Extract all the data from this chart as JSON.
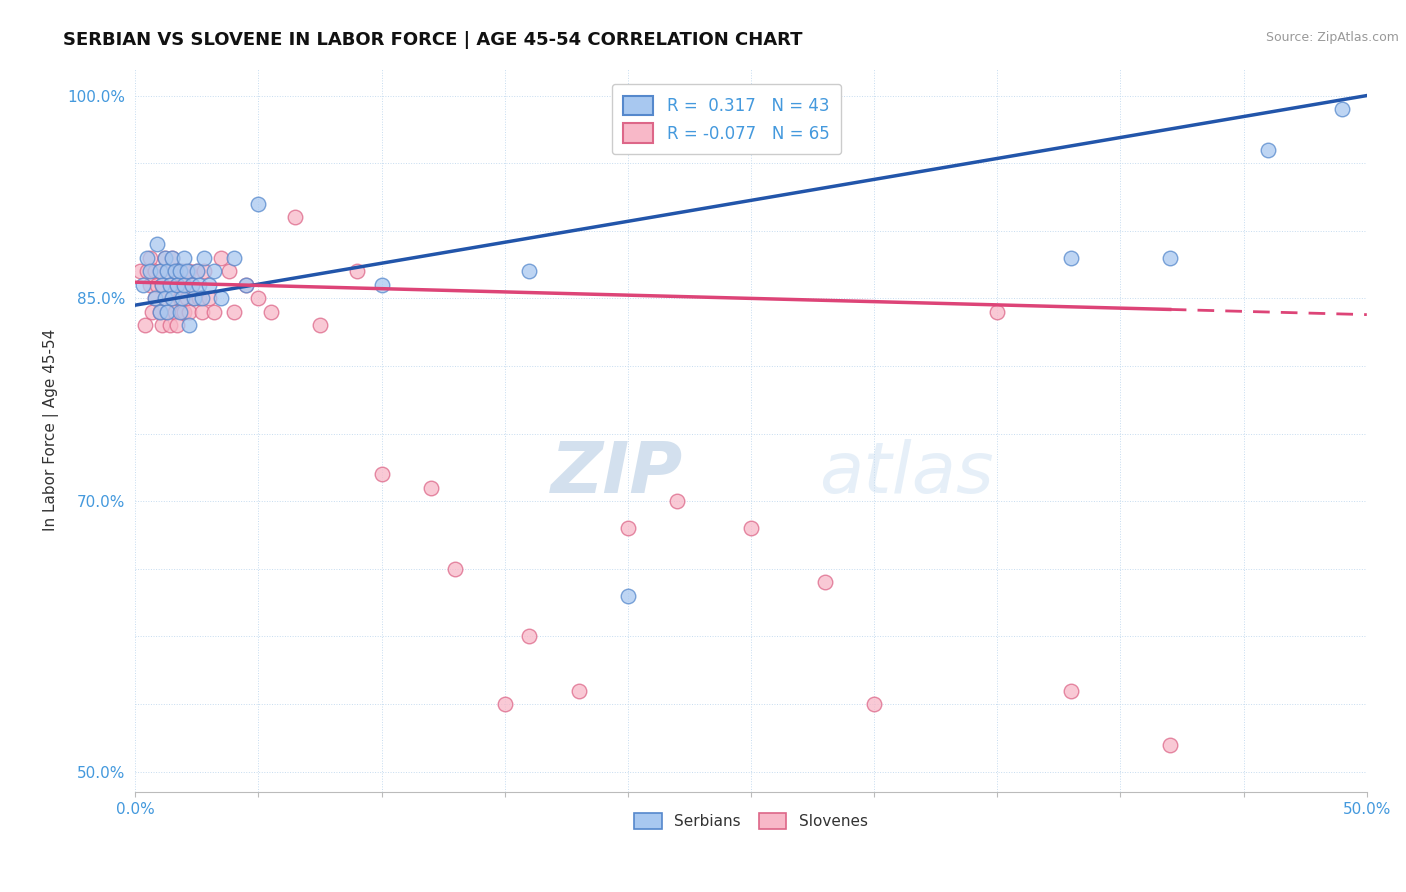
{
  "title": "SERBIAN VS SLOVENE IN LABOR FORCE | AGE 45-54 CORRELATION CHART",
  "source": "Source: ZipAtlas.com",
  "ylabel": "In Labor Force | Age 45-54",
  "xlim": [
    0.0,
    0.5
  ],
  "ylim": [
    0.485,
    1.02
  ],
  "xticks": [
    0.0,
    0.05,
    0.1,
    0.15,
    0.2,
    0.25,
    0.3,
    0.35,
    0.4,
    0.45,
    0.5
  ],
  "xticklabels": [
    "0.0%",
    "",
    "",
    "",
    "",
    "",
    "",
    "",
    "",
    "",
    "50.0%"
  ],
  "yticks": [
    0.5,
    0.55,
    0.6,
    0.65,
    0.7,
    0.75,
    0.8,
    0.85,
    0.9,
    0.95,
    1.0
  ],
  "yticklabels": [
    "50.0%",
    "",
    "",
    "",
    "70.0%",
    "",
    "",
    "85.0%",
    "",
    "",
    "100.0%"
  ],
  "serbian_R": 0.317,
  "serbian_N": 43,
  "slovene_R": -0.077,
  "slovene_N": 65,
  "serbian_color": "#a8c8f0",
  "slovene_color": "#f8b8c8",
  "serbian_edge_color": "#5588cc",
  "slovene_edge_color": "#dd6688",
  "serbian_line_color": "#2255aa",
  "slovene_line_color": "#dd4477",
  "watermark_zip": "ZIP",
  "watermark_atlas": "atlas",
  "serbian_line_intercept": 0.845,
  "serbian_line_slope": 0.31,
  "slovene_line_intercept": 0.862,
  "slovene_line_slope": -0.048,
  "serbian_x": [
    0.003,
    0.005,
    0.006,
    0.008,
    0.009,
    0.01,
    0.01,
    0.011,
    0.012,
    0.012,
    0.013,
    0.013,
    0.014,
    0.015,
    0.015,
    0.016,
    0.017,
    0.018,
    0.018,
    0.019,
    0.02,
    0.02,
    0.021,
    0.022,
    0.023,
    0.024,
    0.025,
    0.026,
    0.027,
    0.028,
    0.03,
    0.032,
    0.035,
    0.04,
    0.045,
    0.05,
    0.1,
    0.16,
    0.2,
    0.38,
    0.42,
    0.46,
    0.49
  ],
  "serbian_y": [
    0.86,
    0.88,
    0.87,
    0.85,
    0.89,
    0.84,
    0.87,
    0.86,
    0.85,
    0.88,
    0.87,
    0.84,
    0.86,
    0.85,
    0.88,
    0.87,
    0.86,
    0.84,
    0.87,
    0.85,
    0.86,
    0.88,
    0.87,
    0.83,
    0.86,
    0.85,
    0.87,
    0.86,
    0.85,
    0.88,
    0.86,
    0.87,
    0.85,
    0.88,
    0.86,
    0.92,
    0.86,
    0.87,
    0.63,
    0.88,
    0.88,
    0.96,
    0.99
  ],
  "slovene_x": [
    0.002,
    0.004,
    0.005,
    0.006,
    0.006,
    0.007,
    0.008,
    0.008,
    0.009,
    0.01,
    0.01,
    0.011,
    0.011,
    0.012,
    0.012,
    0.013,
    0.013,
    0.014,
    0.014,
    0.015,
    0.015,
    0.016,
    0.016,
    0.017,
    0.017,
    0.018,
    0.018,
    0.019,
    0.019,
    0.02,
    0.02,
    0.021,
    0.022,
    0.022,
    0.023,
    0.024,
    0.025,
    0.026,
    0.027,
    0.028,
    0.03,
    0.032,
    0.035,
    0.038,
    0.04,
    0.045,
    0.05,
    0.055,
    0.065,
    0.075,
    0.09,
    0.1,
    0.12,
    0.13,
    0.15,
    0.16,
    0.18,
    0.2,
    0.22,
    0.25,
    0.28,
    0.3,
    0.35,
    0.38,
    0.42
  ],
  "slovene_y": [
    0.87,
    0.83,
    0.87,
    0.86,
    0.88,
    0.84,
    0.85,
    0.87,
    0.86,
    0.84,
    0.87,
    0.83,
    0.86,
    0.85,
    0.88,
    0.84,
    0.87,
    0.83,
    0.86,
    0.85,
    0.88,
    0.84,
    0.87,
    0.83,
    0.86,
    0.85,
    0.87,
    0.84,
    0.86,
    0.84,
    0.87,
    0.85,
    0.84,
    0.87,
    0.86,
    0.85,
    0.87,
    0.85,
    0.84,
    0.87,
    0.85,
    0.84,
    0.88,
    0.87,
    0.84,
    0.86,
    0.85,
    0.84,
    0.91,
    0.83,
    0.87,
    0.72,
    0.71,
    0.65,
    0.55,
    0.6,
    0.56,
    0.68,
    0.7,
    0.68,
    0.64,
    0.55,
    0.84,
    0.56,
    0.52
  ]
}
